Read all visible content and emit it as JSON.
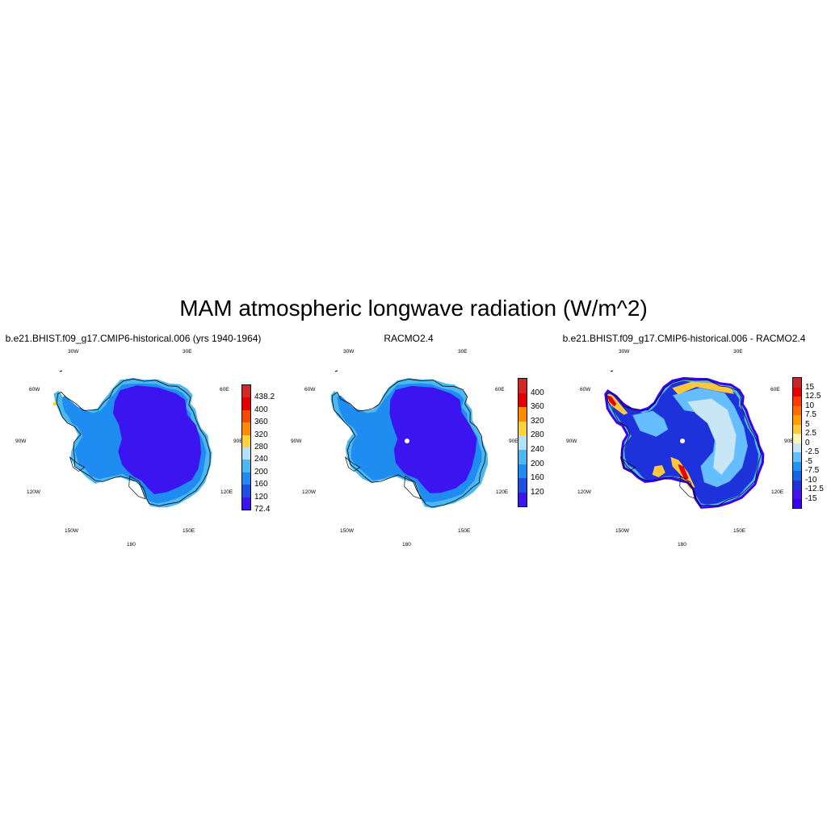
{
  "figure": {
    "title": "MAM atmospheric longwave radiation (W/m^2)"
  },
  "longitude_labels": {
    "l30w": "30W",
    "l30e": "30E",
    "l60w": "60W",
    "l60e": "60E",
    "l90w": "90W",
    "l90e": "90E",
    "l120w": "120W",
    "l120e": "120E",
    "l150w": "150W",
    "l150e": "150E",
    "l180": "180"
  },
  "panels": [
    {
      "title": "b.e21.BHIST.f09_g17.CMIP6-historical.006 (yrs 1940-1964)",
      "colorbar": {
        "labels": [
          "438.2",
          "400",
          "360",
          "320",
          "280",
          "240",
          "200",
          "160",
          "120",
          "72.4"
        ],
        "colors": [
          "#d62728",
          "#e50000",
          "#f24b00",
          "#ff8c00",
          "#ffd23c",
          "#b3e1f5",
          "#4db8f0",
          "#1e8cf0",
          "#1e50e6",
          "#3c14f0"
        ]
      }
    },
    {
      "title": "RACMO2.4",
      "colorbar": {
        "labels": [
          "400",
          "360",
          "320",
          "280",
          "240",
          "200",
          "160",
          "120"
        ],
        "colors": [
          "#d62728",
          "#e50000",
          "#ff8c00",
          "#ffd23c",
          "#b3e1f5",
          "#4db8f0",
          "#1e8cf0",
          "#1e50e6",
          "#3c14f0"
        ]
      }
    },
    {
      "title": "b.e21.BHIST.f09_g17.CMIP6-historical.006 - RACMO2.4",
      "colorbar": {
        "labels": [
          "15",
          "12.5",
          "10",
          "7.5",
          "5",
          "2.5",
          "0",
          "-2.5",
          "-5",
          "-7.5",
          "-10",
          "-12.5",
          "-15"
        ],
        "colors": [
          "#c8282d",
          "#e60000",
          "#ff3c00",
          "#ff6e00",
          "#ffa000",
          "#ffc83c",
          "#fff5b4",
          "#c8e6f5",
          "#64beff",
          "#1e96f0",
          "#1464e6",
          "#1e32dc",
          "#4614f0",
          "#3c00f0"
        ]
      }
    }
  ]
}
